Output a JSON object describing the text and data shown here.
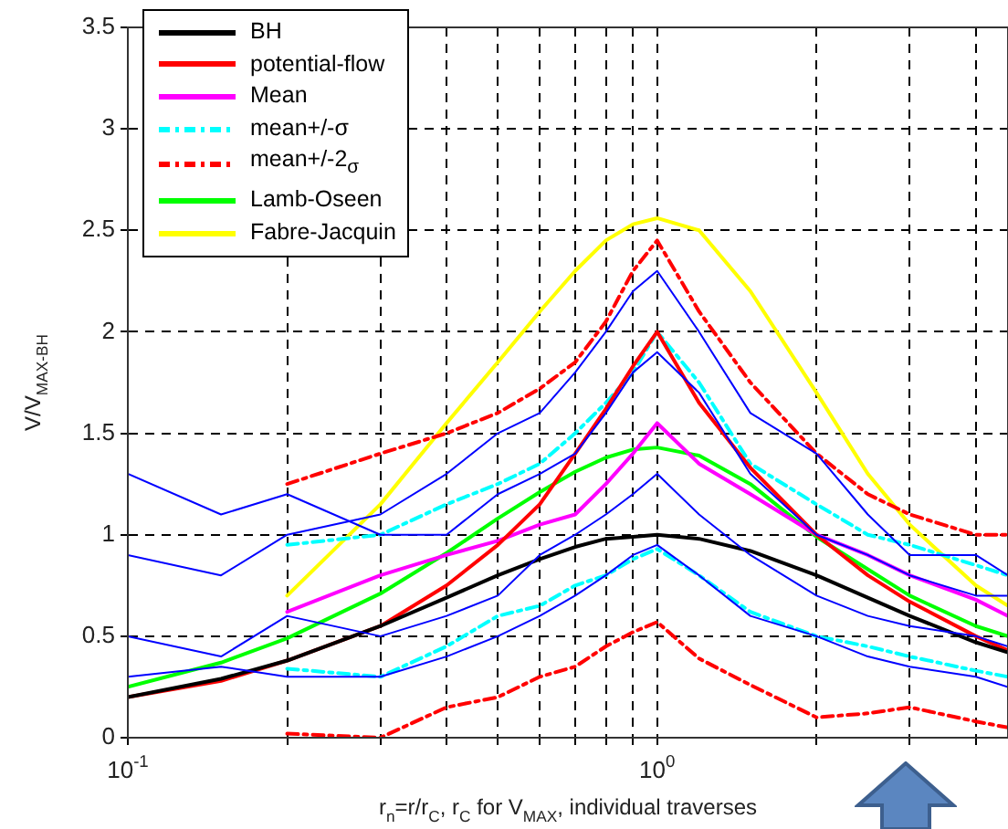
{
  "chart_data": {
    "type": "line",
    "xlabel": "r$_{n}$=r/r$_{C}$, r$_{C}$ for V$_{MAX}$, individual traverses",
    "ylabel": "V/V$_{MAX-BH}$",
    "x": [
      0.1,
      0.15,
      0.2,
      0.3,
      0.4,
      0.5,
      0.6,
      0.7,
      0.8,
      0.9,
      1,
      1.2,
      1.5,
      2,
      2.5,
      3,
      4,
      4.6
    ],
    "series": [
      {
        "color": "#0000ff",
        "values": [
          0.9,
          0.8,
          1.0,
          1.1,
          1.3,
          1.5,
          1.6,
          1.8,
          2.0,
          2.2,
          2.3,
          2.0,
          1.6,
          1.4,
          1.1,
          0.9,
          0.9,
          0.8
        ]
      },
      {
        "color": "#0000ff",
        "values": [
          0.5,
          0.4,
          0.6,
          0.5,
          0.6,
          0.7,
          0.9,
          1.0,
          1.1,
          1.2,
          1.3,
          1.1,
          0.9,
          0.7,
          0.6,
          0.55,
          0.5,
          0.45
        ]
      },
      {
        "color": "#0000ff",
        "values": [
          0.3,
          0.35,
          0.3,
          0.3,
          0.4,
          0.5,
          0.6,
          0.7,
          0.8,
          0.9,
          0.95,
          0.8,
          0.6,
          0.5,
          0.4,
          0.35,
          0.3,
          0.25
        ]
      },
      {
        "color": "#0000ff",
        "values": [
          1.3,
          1.1,
          1.2,
          1.0,
          1.0,
          1.2,
          1.3,
          1.4,
          1.6,
          1.8,
          1.9,
          1.7,
          1.3,
          1.0,
          0.9,
          0.8,
          0.7,
          0.7
        ]
      },
      {
        "name": "BH",
        "color": "#000000",
        "values": [
          0.2,
          0.29,
          0.38,
          0.55,
          0.69,
          0.8,
          0.88,
          0.94,
          0.98,
          0.99,
          1.0,
          0.98,
          0.92,
          0.8,
          0.69,
          0.6,
          0.47,
          0.42
        ]
      },
      {
        "name": "potential-flow",
        "color": "#ff0000",
        "values": [
          0.2,
          0.28,
          0.38,
          0.55,
          0.75,
          0.95,
          1.15,
          1.4,
          1.62,
          1.83,
          2.0,
          1.65,
          1.33,
          1.0,
          0.8,
          0.67,
          0.5,
          0.43
        ]
      },
      {
        "name": "Mean",
        "color": "#ff00ff",
        "values": [
          null,
          null,
          0.62,
          0.8,
          0.9,
          0.97,
          1.05,
          1.1,
          1.25,
          1.4,
          1.55,
          1.35,
          1.2,
          1.0,
          0.9,
          0.8,
          0.68,
          0.6
        ]
      },
      {
        "name": "mean+/-σ",
        "color": "#00ffff",
        "line_style": "dashed",
        "values": [
          null,
          null,
          0.95,
          1.0,
          1.15,
          1.25,
          1.35,
          1.5,
          1.65,
          1.8,
          2.0,
          1.75,
          1.35,
          1.15,
          1.0,
          0.95,
          0.85,
          0.8
        ]
      },
      {
        "color": "#00ffff",
        "line_style": "dashed",
        "values": [
          null,
          null,
          0.34,
          0.3,
          0.45,
          0.6,
          0.65,
          0.75,
          0.8,
          0.88,
          0.93,
          0.8,
          0.62,
          0.5,
          0.45,
          0.4,
          0.33,
          0.3
        ]
      },
      {
        "name": "mean+/-2$_{σ}$",
        "color": "#ff0000",
        "line_style": "dashed",
        "values": [
          null,
          null,
          1.25,
          1.4,
          1.5,
          1.6,
          1.72,
          1.85,
          2.05,
          2.3,
          2.45,
          2.1,
          1.75,
          1.4,
          1.2,
          1.1,
          1.0,
          1.0
        ]
      },
      {
        "color": "#ff0000",
        "line_style": "dashed",
        "values": [
          null,
          null,
          0.02,
          0.0,
          0.15,
          0.2,
          0.3,
          0.35,
          0.45,
          0.52,
          0.57,
          0.39,
          0.26,
          0.1,
          0.12,
          0.15,
          0.08,
          0.05
        ]
      },
      {
        "name": "Lamb-Oseen",
        "color": "#00ff00",
        "values": [
          0.25,
          0.37,
          0.49,
          0.71,
          0.91,
          1.08,
          1.21,
          1.31,
          1.38,
          1.42,
          1.43,
          1.39,
          1.25,
          0.99,
          0.83,
          0.7,
          0.55,
          0.5
        ]
      },
      {
        "name": "Fabre-Jacquin",
        "color": "#ffff00",
        "values": [
          null,
          null,
          0.7,
          1.15,
          1.55,
          1.85,
          2.1,
          2.3,
          2.45,
          2.53,
          2.56,
          2.5,
          2.2,
          1.7,
          1.3,
          1.05,
          0.75,
          0.65
        ]
      }
    ],
    "xlim": [
      0.1,
      4.6
    ],
    "ylim": [
      0,
      3.5
    ],
    "log": "x",
    "xticks": [
      {
        "value": 0.1,
        "label": "10$^{-1}$"
      },
      {
        "value": 0.2,
        "label": null
      },
      {
        "value": 0.3,
        "label": null
      },
      {
        "value": 0.4,
        "label": null
      },
      {
        "value": 0.5,
        "label": null
      },
      {
        "value": 0.6,
        "label": null
      },
      {
        "value": 0.7,
        "label": null
      },
      {
        "value": 0.8,
        "label": null
      },
      {
        "value": 0.9,
        "label": null
      },
      {
        "value": 1,
        "label": "10$^{0}$"
      },
      {
        "value": 2,
        "label": null
      },
      {
        "value": 3,
        "label": null
      },
      {
        "value": 4,
        "label": null
      }
    ],
    "yticks": [
      0,
      0.5,
      1,
      1.5,
      2,
      2.5,
      3,
      3.5
    ],
    "grid": true,
    "legend": "top left",
    "marker": "none"
  }
}
